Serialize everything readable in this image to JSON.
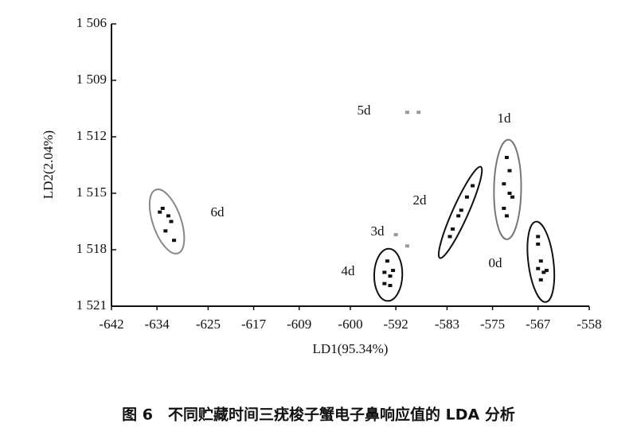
{
  "chart_data": {
    "type": "scatter",
    "x_label": "LD1(95.34%)",
    "y_label": "LD2(2.04%)",
    "caption": "图 6　不同贮藏时间三疣梭子蟹电子鼻响应值的 LDA 分析",
    "xlim": [
      -642,
      -558
    ],
    "xticks": [
      -642,
      -634,
      -625,
      -617,
      -609,
      -600,
      -592,
      -583,
      -575,
      -567,
      -558
    ],
    "ylim": [
      1521,
      1506
    ],
    "yticks": [
      {
        "value": 1506,
        "label": "1 506"
      },
      {
        "value": 1509,
        "label": "1 509"
      },
      {
        "value": 1512,
        "label": "1 512"
      },
      {
        "value": 1515,
        "label": "1 515"
      },
      {
        "value": 1518,
        "label": "1 518"
      },
      {
        "value": 1521,
        "label": "1 521"
      }
    ],
    "series": [
      {
        "name": "0d",
        "color": "#111",
        "ellipse": true,
        "ellipse_color": "#111",
        "x": [
          -567,
          -567,
          -566.5,
          -567,
          -566,
          -565.5,
          -566.5
        ],
        "values": [
          1517.3,
          1517.7,
          1518.6,
          1519,
          1519.2,
          1519.1,
          1519.6
        ]
      },
      {
        "name": "1d",
        "color": "#111",
        "ellipse": true,
        "ellipse_color": "#777",
        "x": [
          -572.5,
          -572,
          -573,
          -572,
          -571.5,
          -573,
          -572.5
        ],
        "values": [
          1513.1,
          1513.8,
          1514.5,
          1515,
          1515.2,
          1515.8,
          1516.2
        ]
      },
      {
        "name": "2d",
        "color": "#111",
        "ellipse": true,
        "ellipse_color": "#111",
        "x": [
          -582.5,
          -582,
          -581,
          -580.5,
          -579.5,
          -578.5
        ],
        "values": [
          1517.3,
          1516.9,
          1516.2,
          1515.9,
          1515.2,
          1514.6
        ]
      },
      {
        "name": "3d",
        "color": "#999",
        "ellipse": false,
        "ellipse_color": "#999",
        "x": [
          -592,
          -590
        ],
        "values": [
          1517.2,
          1517.8
        ]
      },
      {
        "name": "4d",
        "color": "#111",
        "ellipse": true,
        "ellipse_color": "#111",
        "x": [
          -593.5,
          -594,
          -593,
          -594,
          -593,
          -592.5
        ],
        "values": [
          1518.6,
          1519.2,
          1519.4,
          1519.8,
          1519.9,
          1519.1
        ]
      },
      {
        "name": "5d",
        "color": "#999",
        "ellipse": false,
        "ellipse_color": "#999",
        "x": [
          -590,
          -588
        ],
        "values": [
          1510.7,
          1510.7
        ]
      },
      {
        "name": "6d",
        "color": "#111",
        "ellipse": true,
        "ellipse_color": "#888",
        "x": [
          -633,
          -632,
          -631.5,
          -632.5,
          -631,
          -633.5
        ],
        "values": [
          1515.8,
          1516.2,
          1516.5,
          1517,
          1517.5,
          1516
        ]
      }
    ]
  }
}
